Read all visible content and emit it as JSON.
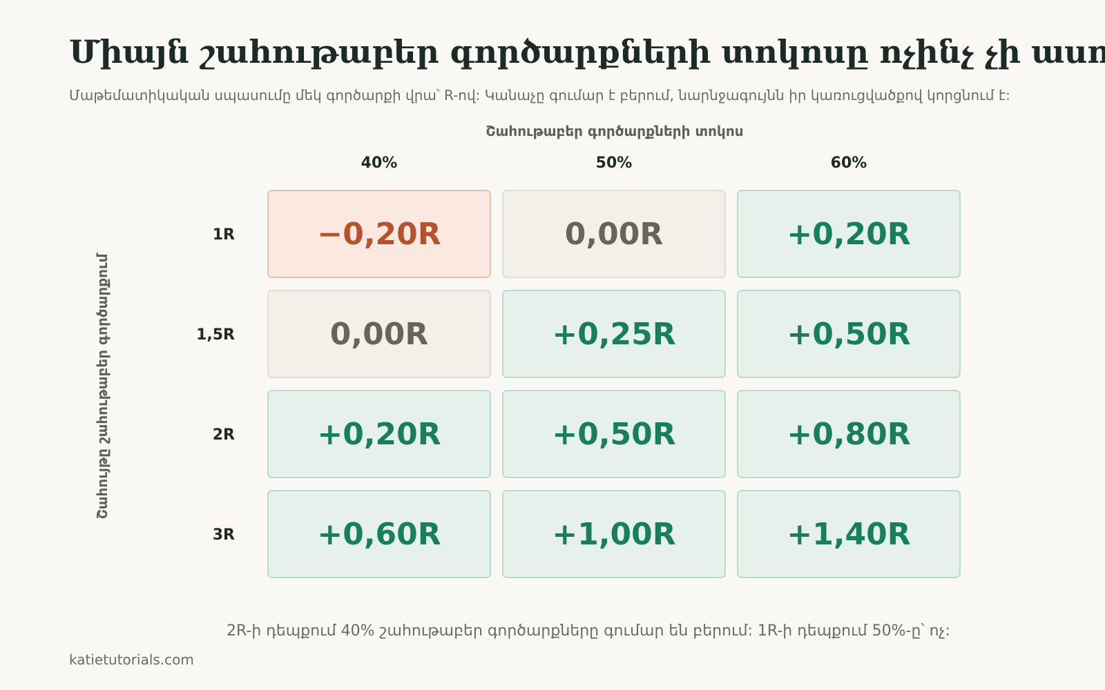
{
  "title": "Միայն շահութաբեր գործարքների տոկոսը ոչինչ չի ասում",
  "subtitle": "Մաթեմատիկական սպասումը մեկ գործարքի վրա՝ R-ով: Կանաչը գումար է բերում, նարնջագույնն իր կառուցվածքով կորցնում է:",
  "footnote": "2R-ի դեպքում 40% շահութաբեր գործարքները գումար են բերում: 1R-ի դեպքում 50%-ը՝ ոչ:",
  "source": "katietutorials.com",
  "colors": {
    "positive": "#17805a",
    "zero": "#66655c",
    "negative": "#b4532c",
    "background": "#f9f8f4"
  },
  "chart_data": {
    "type": "heatmap",
    "title": "Միայն շահութաբեր գործարքների տոկոսը ոչինչ չի ասում",
    "xlabel": "Շահութաբեր գործարքների տոկոս",
    "ylabel": "Շահույթը շահութաբեր գործարքում",
    "x_categories": [
      "40%",
      "50%",
      "60%"
    ],
    "y_categories": [
      "1R",
      "1,5R",
      "2R",
      "3R"
    ],
    "values": [
      [
        -0.2,
        0.0,
        0.2
      ],
      [
        0.0,
        0.25,
        0.5
      ],
      [
        0.2,
        0.5,
        0.8
      ],
      [
        0.6,
        1.0,
        1.4
      ]
    ],
    "labels": [
      [
        "−0,20R",
        "0,00R",
        "+0,20R"
      ],
      [
        "0,00R",
        "+0,25R",
        "+0,50R"
      ],
      [
        "+0,20R",
        "+0,50R",
        "+0,80R"
      ],
      [
        "+0,60R",
        "+1,00R",
        "+1,40R"
      ]
    ]
  }
}
